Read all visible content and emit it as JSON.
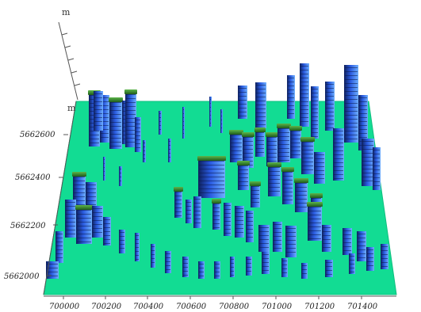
{
  "colors": {
    "ground": "#12dc93",
    "ground_edge": "#0fbf7f",
    "building_blue": "#2a5be0",
    "building_light": "#5fa4ff",
    "building_dark": "#0d1f5c",
    "roof_green": "#3b8f2a",
    "axis": "#555555"
  },
  "vertical_axis": {
    "unit_top": "m",
    "unit_bottom": "m"
  },
  "y_axis": {
    "ticks": [
      "5662600",
      "5662400",
      "5662200",
      "5662000"
    ]
  },
  "x_axis": {
    "ticks": [
      "700000",
      "700200",
      "700400",
      "700600",
      "700800",
      "701000",
      "701200",
      "701400"
    ]
  }
}
